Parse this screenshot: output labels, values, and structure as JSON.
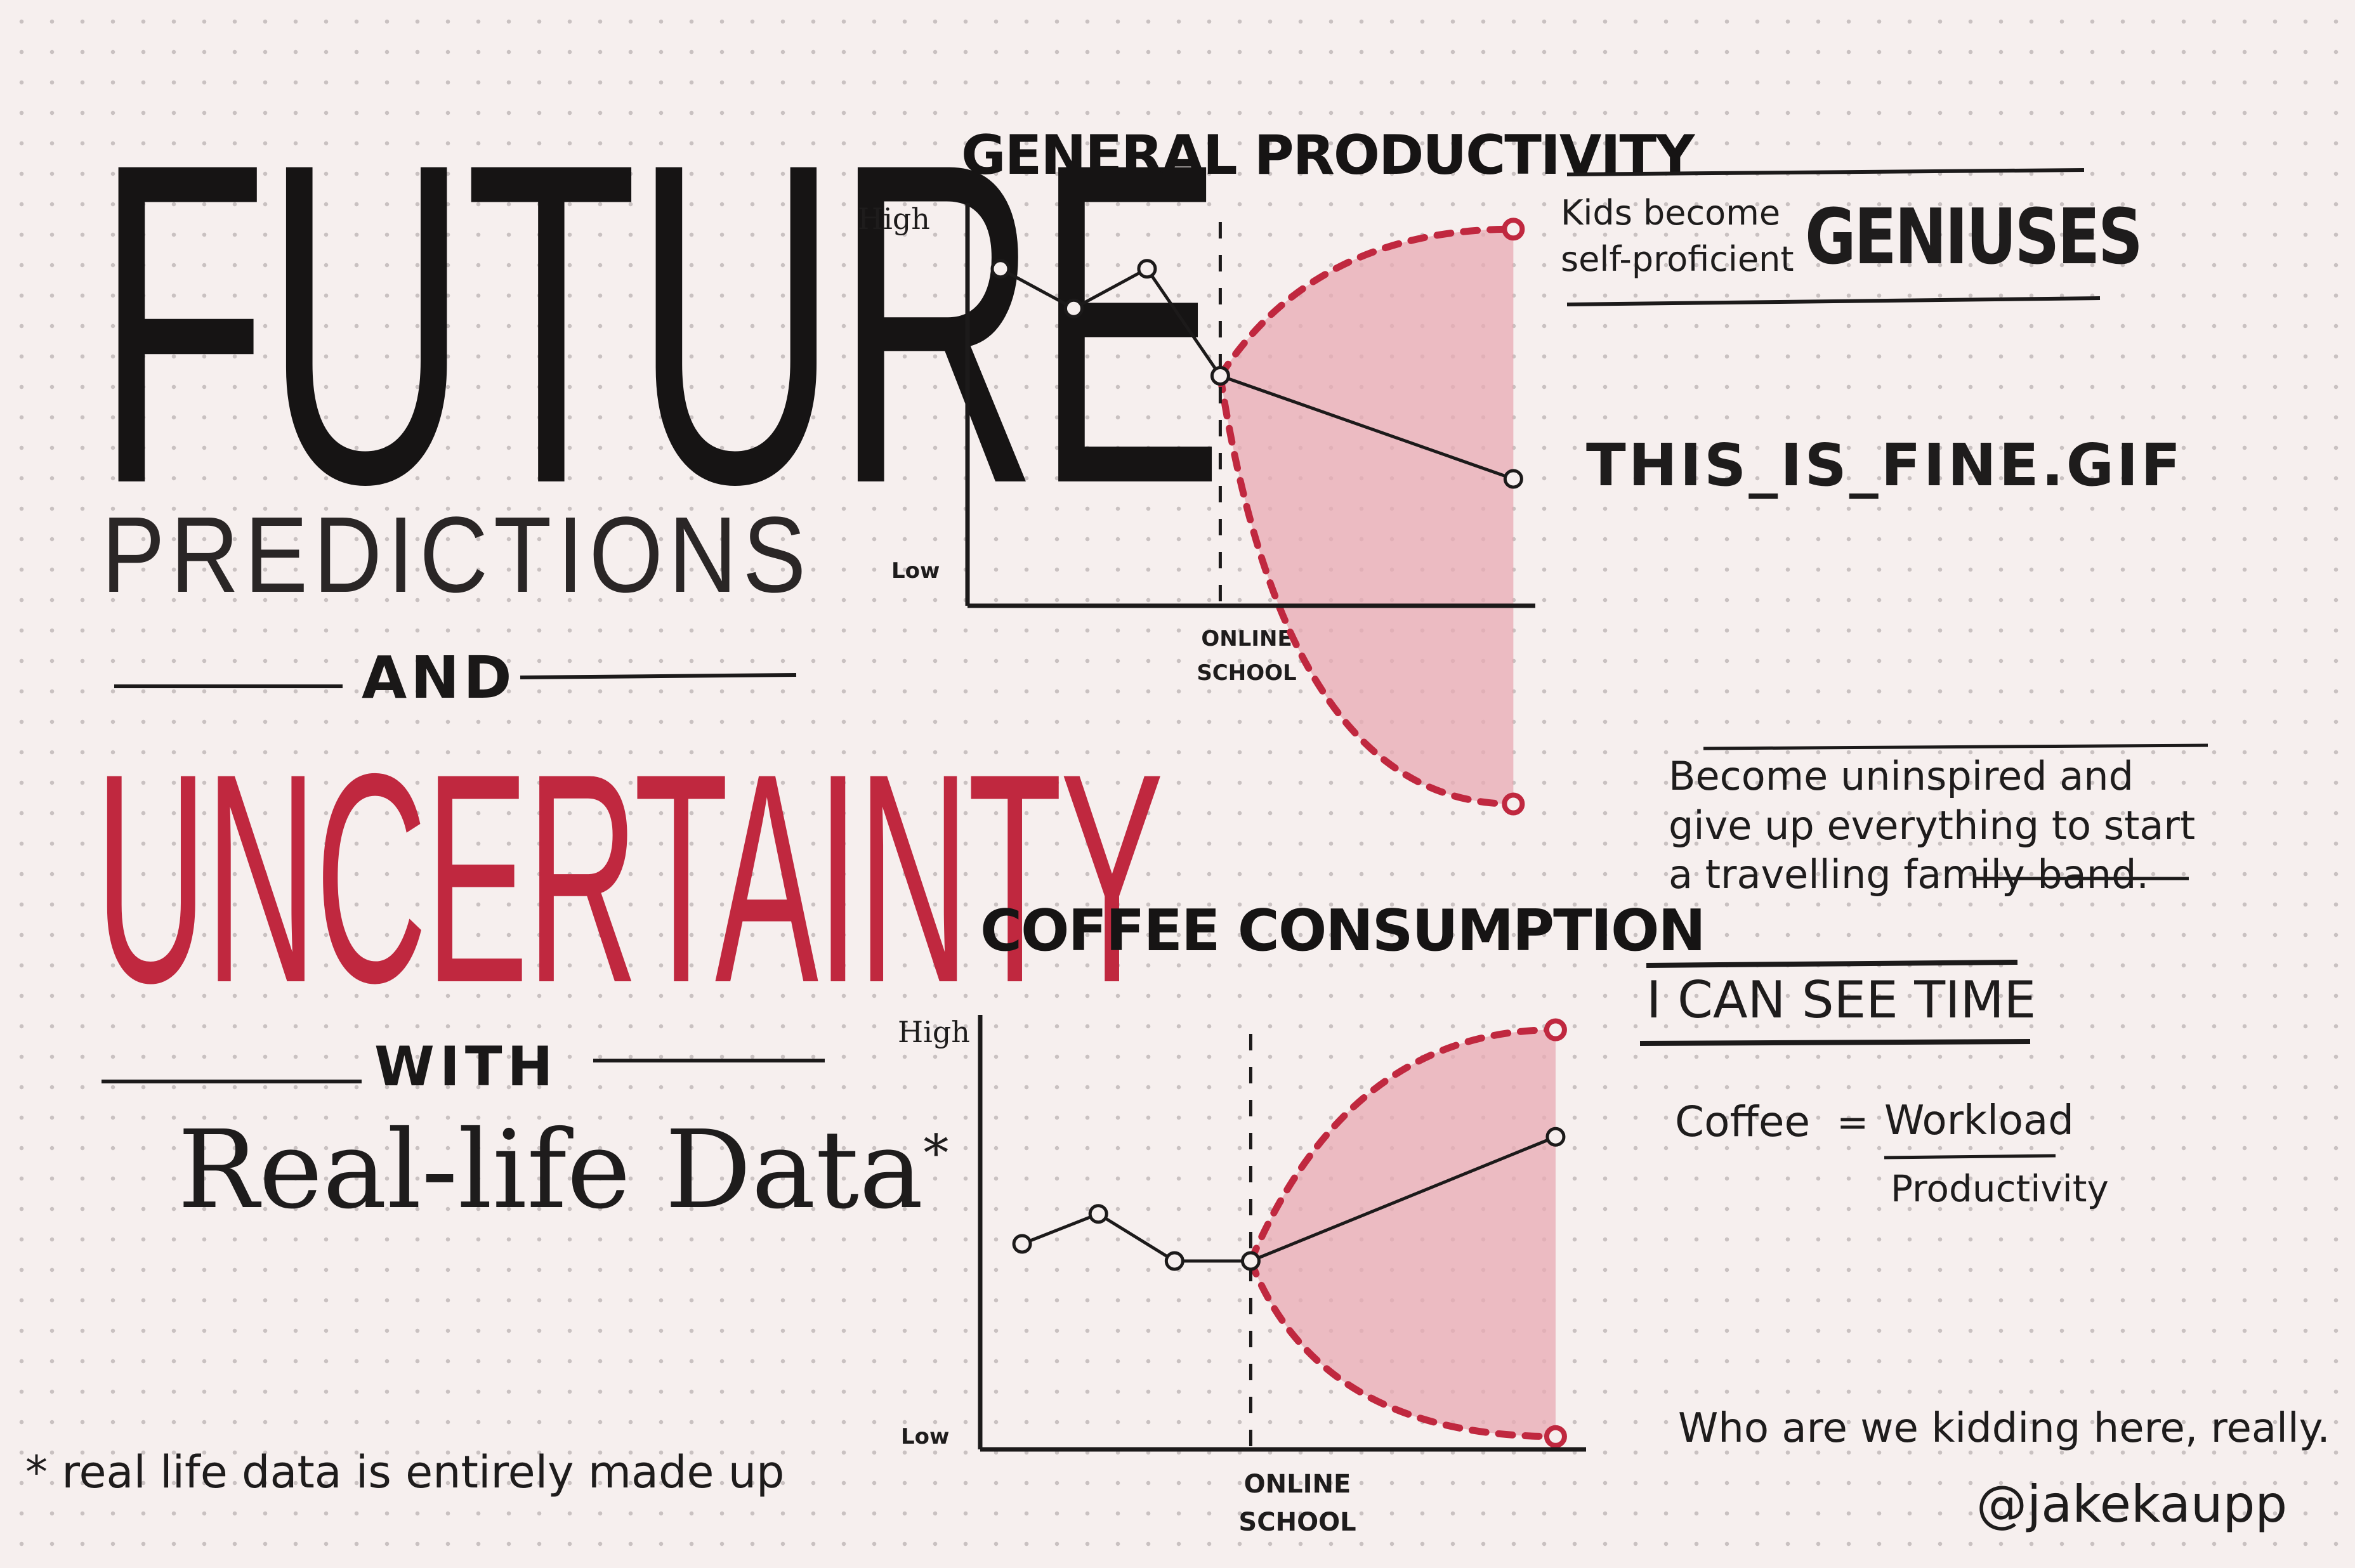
{
  "poster": {
    "future": "FUTURE",
    "predictions": "PREDICTIONS",
    "and": "AND",
    "uncertainty": "UNCERTAINTY",
    "with": "WITH",
    "real_life": "Real-life Data",
    "asterisk": "*",
    "footnote": "* real life data is entirely made up",
    "handle": "@jakekaupp"
  },
  "colors": {
    "ink": "#1c1a1a",
    "accent": "#c0283f",
    "fill": "#e8a9b3",
    "paper": "#f6efee"
  },
  "chart_data": [
    {
      "type": "line",
      "title": "GENERAL PRODUCTIVITY",
      "xlabel": "ONLINE SCHOOL",
      "ylabel": "",
      "y_ticks": [
        "High",
        "Low"
      ],
      "ylim": [
        0,
        100
      ],
      "x": [
        1,
        2,
        3,
        4,
        8
      ],
      "series": [
        {
          "values": [
            85,
            75,
            85,
            58,
            32
          ]
        }
      ],
      "marker_line_x": 4,
      "uncertainty": {
        "upper": [
          58,
          95
        ],
        "lower": [
          58,
          -50
        ],
        "x": [
          4,
          8
        ]
      },
      "annotations": {
        "upper_small": "Kids become self-proficient",
        "upper_big": "GENIUSES",
        "middle": "THIS_IS_FINE.GIF",
        "lower": "Become uninspired and give up everything to start a travelling family band."
      }
    },
    {
      "type": "line",
      "title": "COFFEE CONSUMPTION",
      "xlabel": "ONLINE SCHOOL",
      "ylabel": "",
      "y_ticks": [
        "High",
        "Low"
      ],
      "ylim": [
        0,
        100
      ],
      "x": [
        1,
        2,
        3,
        4,
        8
      ],
      "series": [
        {
          "values": [
            48,
            55,
            44,
            44,
            73
          ]
        }
      ],
      "marker_line_x": 4,
      "uncertainty": {
        "upper": [
          44,
          98
        ],
        "lower": [
          44,
          3
        ],
        "x": [
          4,
          8
        ]
      },
      "annotations": {
        "upper": "I CAN SEE TIME",
        "formula_left": "Coffee",
        "formula_eq": "=",
        "formula_num": "Workload",
        "formula_den": "Productivity",
        "lower": "Who are we kidding here, really."
      }
    }
  ]
}
